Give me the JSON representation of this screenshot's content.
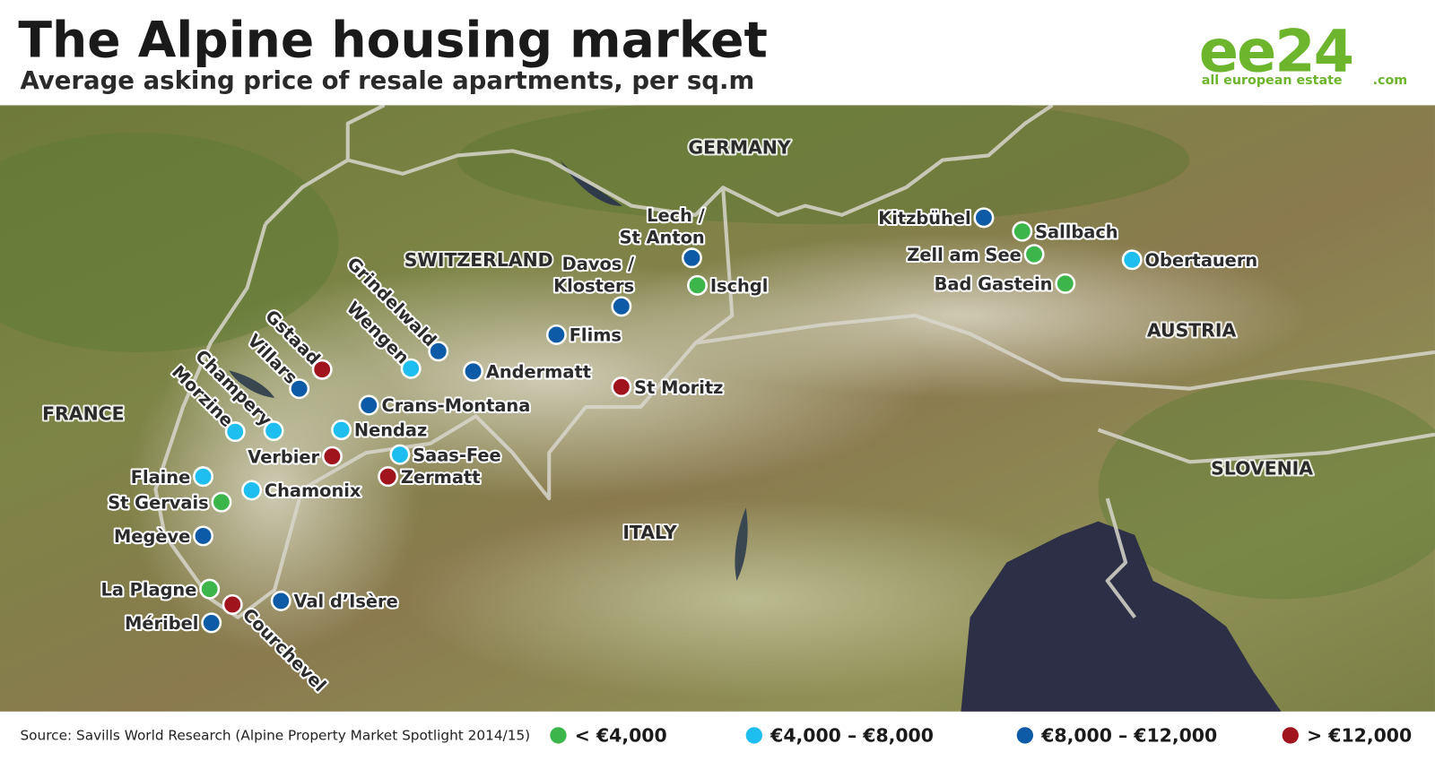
{
  "header": {
    "title": "The Alpine housing market",
    "subtitle": "Average asking price of resale apartments, per sq.m"
  },
  "logo": {
    "mark": "ee24",
    "tagline": "all european estate",
    "suffix": ".com"
  },
  "countries": [
    "GERMANY",
    "SWITZERLAND",
    "AUSTRIA",
    "FRANCE",
    "SLOVENIA",
    "ITALY"
  ],
  "legend": [
    {
      "label": "< €4,000",
      "color": "#3cb54a"
    },
    {
      "label": "€4,000 – €8,000",
      "color": "#1fbef0"
    },
    {
      "label": "€8,000 – €12,000",
      "color": "#0d5aa7"
    },
    {
      "label": "> €12,000",
      "color": "#a0141e"
    }
  ],
  "towns": [
    {
      "name": [
        "Kitzbühel"
      ],
      "band": 2
    },
    {
      "name": [
        "Sallbach"
      ],
      "band": 0
    },
    {
      "name": [
        "Zell am See"
      ],
      "band": 0
    },
    {
      "name": [
        "Bad Gastein"
      ],
      "band": 0
    },
    {
      "name": [
        "Obertauern"
      ],
      "band": 1
    },
    {
      "name": [
        "Lech /",
        "St Anton"
      ],
      "band": 2
    },
    {
      "name": [
        "Ischgl"
      ],
      "band": 0
    },
    {
      "name": [
        "Davos /",
        "Klosters"
      ],
      "band": 2
    },
    {
      "name": [
        "Flims"
      ],
      "band": 2
    },
    {
      "name": [
        "Andermatt"
      ],
      "band": 2
    },
    {
      "name": [
        "St Moritz"
      ],
      "band": 3
    },
    {
      "name": [
        "Grindelwald"
      ],
      "band": 2
    },
    {
      "name": [
        "Wengen"
      ],
      "band": 1
    },
    {
      "name": [
        "Gstaad"
      ],
      "band": 3
    },
    {
      "name": [
        "Villars"
      ],
      "band": 2
    },
    {
      "name": [
        "Champery"
      ],
      "band": 1
    },
    {
      "name": [
        "Morzine"
      ],
      "band": 1
    },
    {
      "name": [
        "Crans-Montana"
      ],
      "band": 2
    },
    {
      "name": [
        "Nendaz"
      ],
      "band": 1
    },
    {
      "name": [
        "Saas-Fee"
      ],
      "band": 1
    },
    {
      "name": [
        "Verbier"
      ],
      "band": 3
    },
    {
      "name": [
        "Zermatt"
      ],
      "band": 3
    },
    {
      "name": [
        "Flaine"
      ],
      "band": 1
    },
    {
      "name": [
        "Chamonix"
      ],
      "band": 1
    },
    {
      "name": [
        "St Gervais"
      ],
      "band": 0
    },
    {
      "name": [
        "Megève"
      ],
      "band": 2
    },
    {
      "name": [
        "La Plagne"
      ],
      "band": 0
    },
    {
      "name": [
        "Courchevel"
      ],
      "band": 3
    },
    {
      "name": [
        "Val d’Isère"
      ],
      "band": 2
    },
    {
      "name": [
        "Méribel"
      ],
      "band": 2
    }
  ],
  "source": "Source: Savills World Research (Alpine Property Market Spotlight 2014/15)"
}
